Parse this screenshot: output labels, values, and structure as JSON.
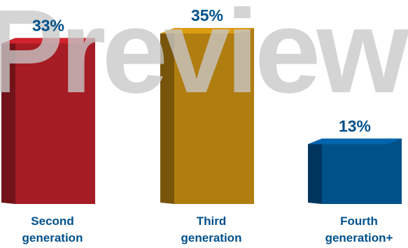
{
  "chart_data": {
    "type": "bar",
    "categories": [
      [
        "Second",
        "generation"
      ],
      [
        "Third",
        "generation"
      ],
      [
        "Fourth",
        "generation+"
      ]
    ],
    "values": [
      33,
      35,
      13
    ],
    "value_labels": [
      "33%",
      "35%",
      "13%"
    ],
    "bar_colors": [
      "#a61c24",
      "#b07d10",
      "#00508a"
    ],
    "value_label_color": "#00508a",
    "category_label_color": "#00508a",
    "ylim": [
      0,
      35
    ],
    "grid": false,
    "legend": "none",
    "title": "",
    "xlabel": "",
    "ylabel": ""
  },
  "watermark": {
    "text": "Preview",
    "color": "#c8c8c8"
  }
}
